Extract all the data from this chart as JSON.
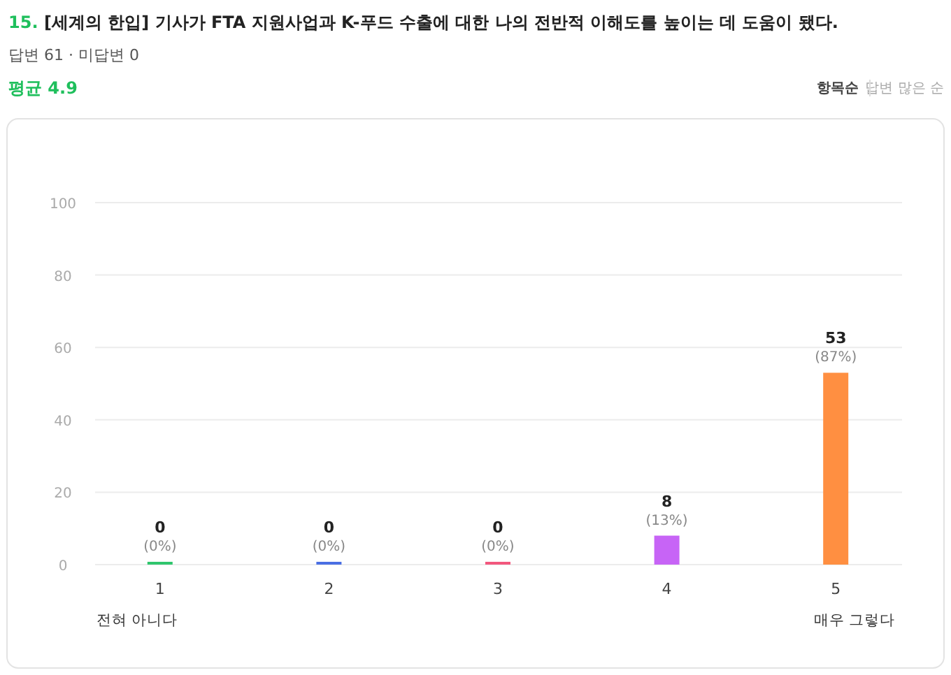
{
  "chart_data": {
    "type": "bar",
    "title": "15. [세계의 한입] 기사가 FTA 지원사업과 K-푸드 수출에 대한 나의 전반적 이해도를 높이는 데 도움이 됐다.",
    "subtitle": "답변 61 · 미답변 0",
    "annotations": [
      "평균 4.9",
      "항목순",
      "답변 많은 순",
      "전혀 아니다",
      "매우 그렇다"
    ],
    "categories": [
      "1",
      "2",
      "3",
      "4",
      "5"
    ],
    "values": [
      0,
      0,
      0,
      8,
      53
    ],
    "colors": [
      "#2fc66d",
      "#4a6fe3",
      "#f2577d",
      "#c764f6",
      "#ff8f41"
    ],
    "value_labels": [
      "0 (0%)",
      "0 (0%)",
      "0 (0%)",
      "8 (13%)",
      "53 (87%)"
    ],
    "ylim": [
      0,
      100
    ],
    "yticks": [
      0,
      20,
      40,
      60,
      80,
      100
    ],
    "grid": "y"
  }
}
